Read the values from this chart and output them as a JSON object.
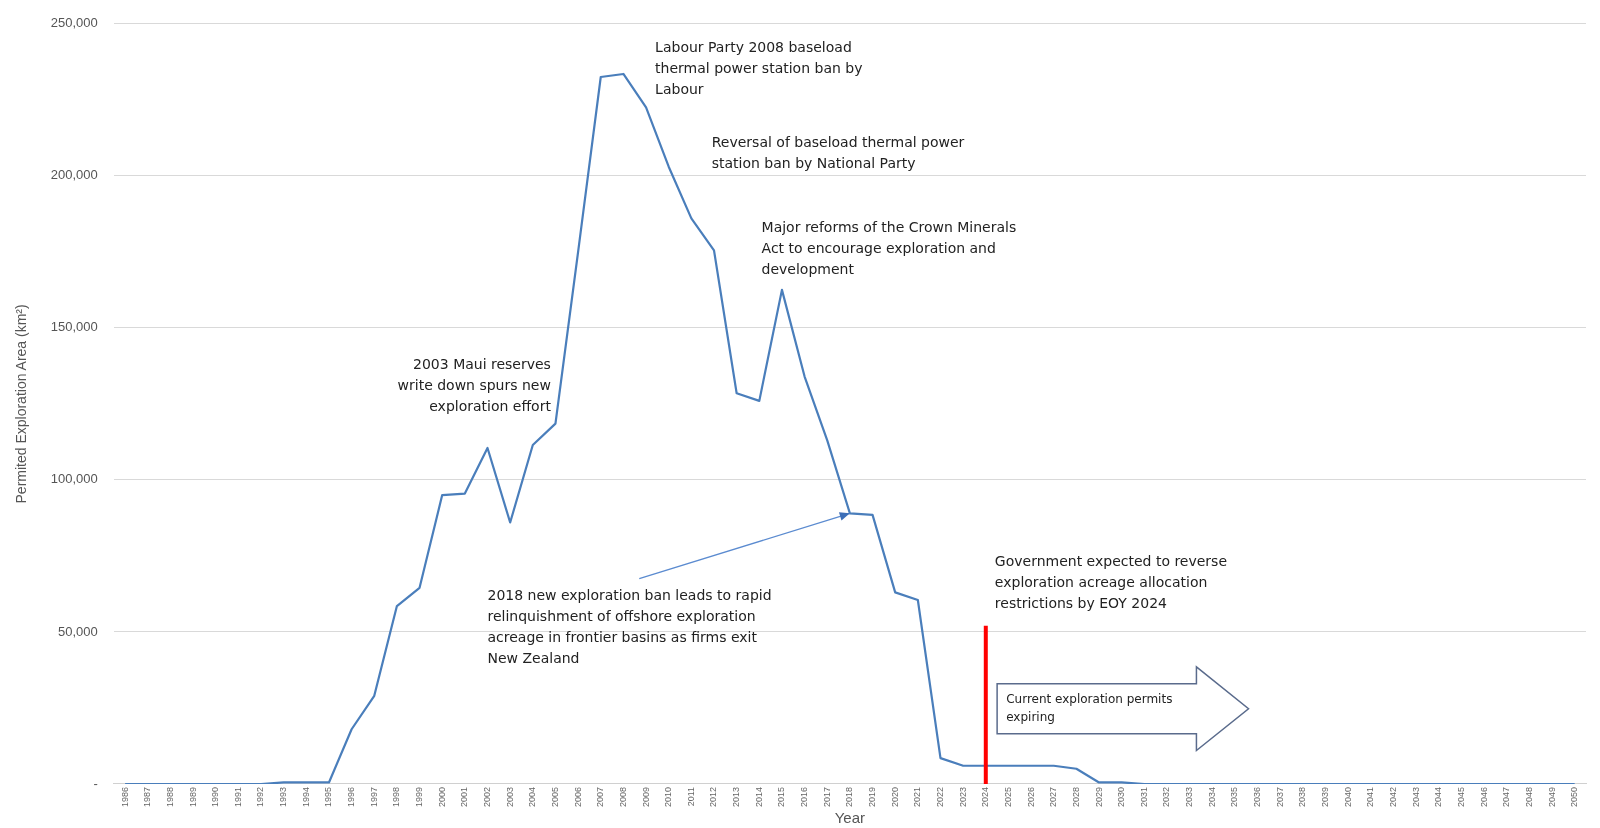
{
  "chart_data": {
    "type": "line",
    "xlabel": "Year",
    "ylabel": "Permited Exploration Area (km²)",
    "categories": [
      "1986",
      "1987",
      "1988",
      "1989",
      "1990",
      "1991",
      "1992",
      "1993",
      "1994",
      "1995",
      "1996",
      "1997",
      "1998",
      "1999",
      "2000",
      "2001",
      "2002",
      "2003",
      "2004",
      "2005",
      "2006",
      "2007",
      "2008",
      "2009",
      "2010",
      "2011",
      "2012",
      "2013",
      "2014",
      "2015",
      "2016",
      "2017",
      "2018",
      "2019",
      "2020",
      "2021",
      "2022",
      "2023",
      "2024",
      "2025",
      "2026",
      "2027",
      "2028",
      "2029",
      "2030",
      "2031",
      "2032",
      "2033",
      "2034",
      "2035",
      "2036",
      "2037",
      "2038",
      "2039",
      "2040",
      "2041",
      "2042",
      "2043",
      "2044",
      "2045",
      "2046",
      "2047",
      "2048",
      "2049",
      "2050"
    ],
    "series": [
      {
        "color": "#4a7ebb",
        "values": [
          0,
          0,
          0,
          0,
          0,
          0,
          0,
          500,
          500,
          500,
          18000,
          29000,
          58500,
          64500,
          95000,
          95500,
          110500,
          86000,
          111500,
          118500,
          175000,
          232500,
          233500,
          222500,
          203000,
          186000,
          175500,
          128500,
          126000,
          162500,
          134000,
          113000,
          89000,
          88500,
          63000,
          60500,
          8500,
          6000,
          6000,
          6000,
          6000,
          6000,
          5000,
          500,
          500,
          0,
          0,
          0,
          0,
          0,
          0,
          0,
          0,
          0,
          0,
          0,
          0,
          0,
          0,
          0,
          0,
          0,
          0,
          0,
          0
        ]
      }
    ],
    "ylim": [
      0,
      250000
    ],
    "yticks": [
      {
        "value": 0,
        "label": "-"
      },
      {
        "value": 50000,
        "label": "50,000"
      },
      {
        "value": 100000,
        "label": "100,000"
      },
      {
        "value": 150000,
        "label": "150,000"
      },
      {
        "value": 200000,
        "label": "200,000"
      },
      {
        "value": 250000,
        "label": "250,000"
      }
    ],
    "grid": "y",
    "legend": false,
    "marker": "none",
    "line_style": "solid",
    "ref_lines": [
      {
        "axis": "x",
        "value": "2024",
        "color": "#ff0000"
      }
    ],
    "annotations": [
      "2003 Maui reserves write down spurs new exploration effort",
      "Labour Party 2008 baseload thermal power station ban by Labour",
      "Reversal of baseload thermal power station ban by National Party",
      "Major reforms of the Crown Minerals Act to encourage exploration and development",
      {
        "text": "2018 new exploration ban leads to rapid relinquishment of offshore exploration acreage in frontier basins as firms exit New Zealand",
        "x": "2018",
        "y": 89000
      },
      "Government expected to reverse exploration acreage allocation restrictions by EOY 2024",
      "Current exploration permits expiring"
    ]
  }
}
